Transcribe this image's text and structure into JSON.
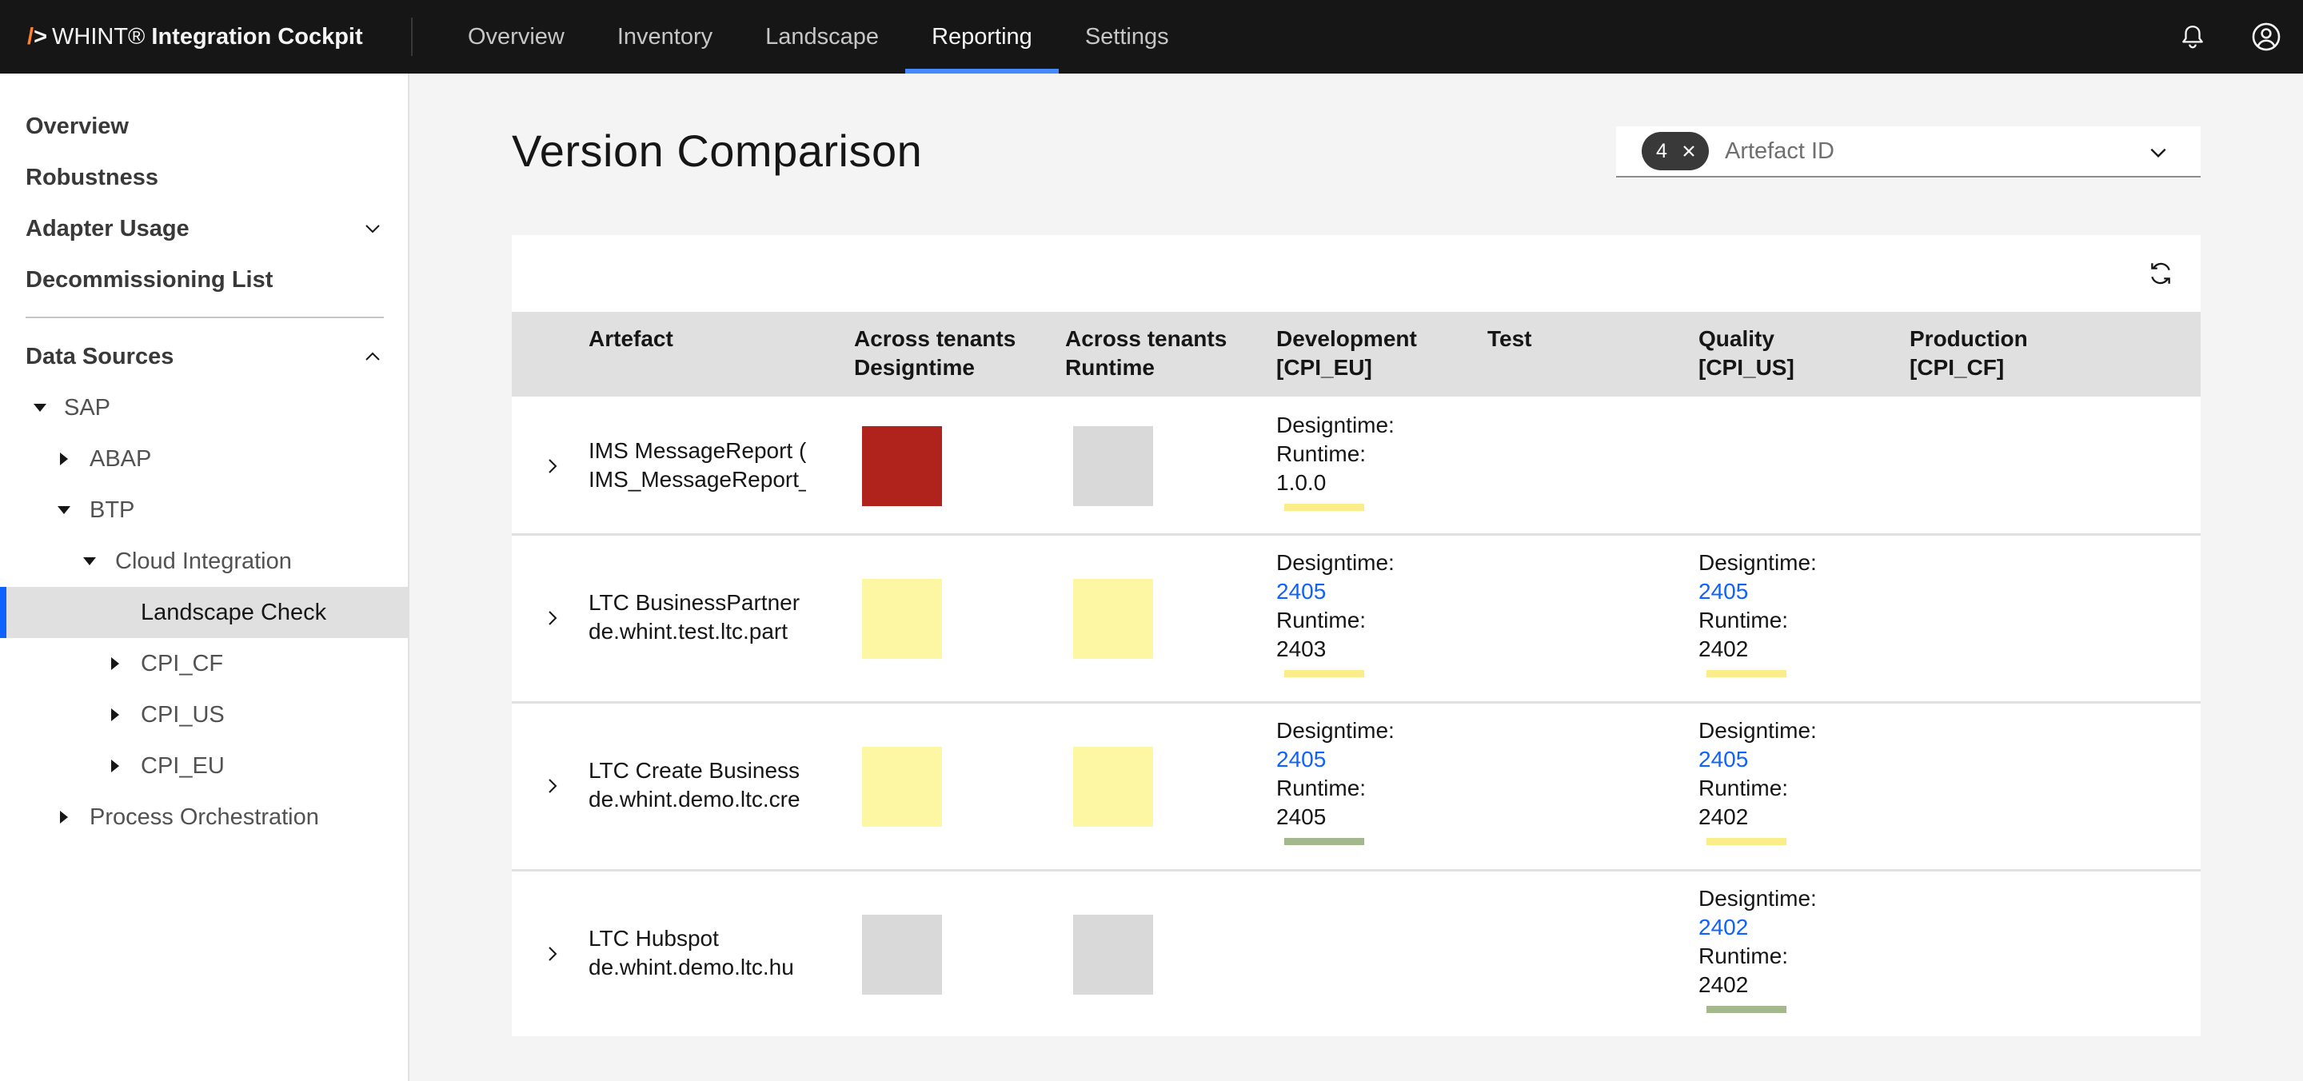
{
  "header": {
    "brand_mark": "/",
    "brand_mark_gt": ">",
    "brand_name": "WHINT®",
    "brand_product": "Integration Cockpit",
    "nav": [
      "Overview",
      "Inventory",
      "Landscape",
      "Reporting",
      "Settings"
    ],
    "active_nav": "Reporting",
    "icons": [
      "notification-icon",
      "user-avatar-icon"
    ]
  },
  "sidebar": {
    "top_items": [
      "Overview",
      "Robustness",
      "Adapter Usage",
      "Decommissioning List"
    ],
    "data_sources_label": "Data Sources",
    "tree": {
      "sap": "SAP",
      "abap": "ABAP",
      "btp": "BTP",
      "cloud_integration": "Cloud Integration",
      "landscape_check": "Landscape Check",
      "cpi_cf": "CPI_CF",
      "cpi_us": "CPI_US",
      "cpi_eu": "CPI_EU",
      "process_orchestration": "Process Orchestration"
    }
  },
  "main": {
    "title": "Version Comparison",
    "filter": {
      "count": "4",
      "placeholder": "Artefact ID"
    },
    "columns": {
      "artefact": "Artefact",
      "across_design_1": "Across tenants",
      "across_design_2": "Designtime",
      "across_runtime_1": "Across tenants",
      "across_runtime_2": "Runtime",
      "development_1": "Development",
      "development_2": "[CPI_EU]",
      "test": "Test",
      "quality_1": "Quality",
      "quality_2": "[CPI_US]",
      "production_1": "Production",
      "production_2": "[CPI_CF]"
    },
    "labels": {
      "designtime": "Designtime:",
      "runtime": "Runtime:"
    },
    "rows": [
      {
        "name": "IMS MessageReport (",
        "id": "IMS_MessageReport_",
        "design_status": "red",
        "runtime_status": "gray",
        "development": {
          "designtime": "",
          "runtime": "1.0.0",
          "bar": "yellow"
        }
      },
      {
        "name": "LTC BusinessPartner",
        "id": "de.whint.test.ltc.part",
        "design_status": "yellow",
        "runtime_status": "yellow",
        "development": {
          "designtime": "2405",
          "runtime": "2403",
          "bar": "yellow"
        },
        "quality": {
          "designtime": "2405",
          "runtime": "2402",
          "bar": "yellow"
        }
      },
      {
        "name": "LTC Create Business",
        "id": "de.whint.demo.ltc.cre",
        "design_status": "yellow",
        "runtime_status": "yellow",
        "development": {
          "designtime": "2405",
          "runtime": "2405",
          "bar": "green"
        },
        "quality": {
          "designtime": "2405",
          "runtime": "2402",
          "bar": "yellow"
        }
      },
      {
        "name": "LTC Hubspot",
        "id": "de.whint.demo.ltc.hu",
        "design_status": "gray",
        "runtime_status": "gray",
        "quality": {
          "designtime": "2402",
          "runtime": "2402",
          "bar": "green"
        }
      }
    ]
  },
  "colors": {
    "red": "#b0231c",
    "yellow": "#fdf6a3",
    "gray": "#d9d9d9",
    "bar_yellow": "#fbee8a",
    "bar_green": "#a3b88c",
    "accent": "#4589ff",
    "link": "#0f62fe"
  }
}
